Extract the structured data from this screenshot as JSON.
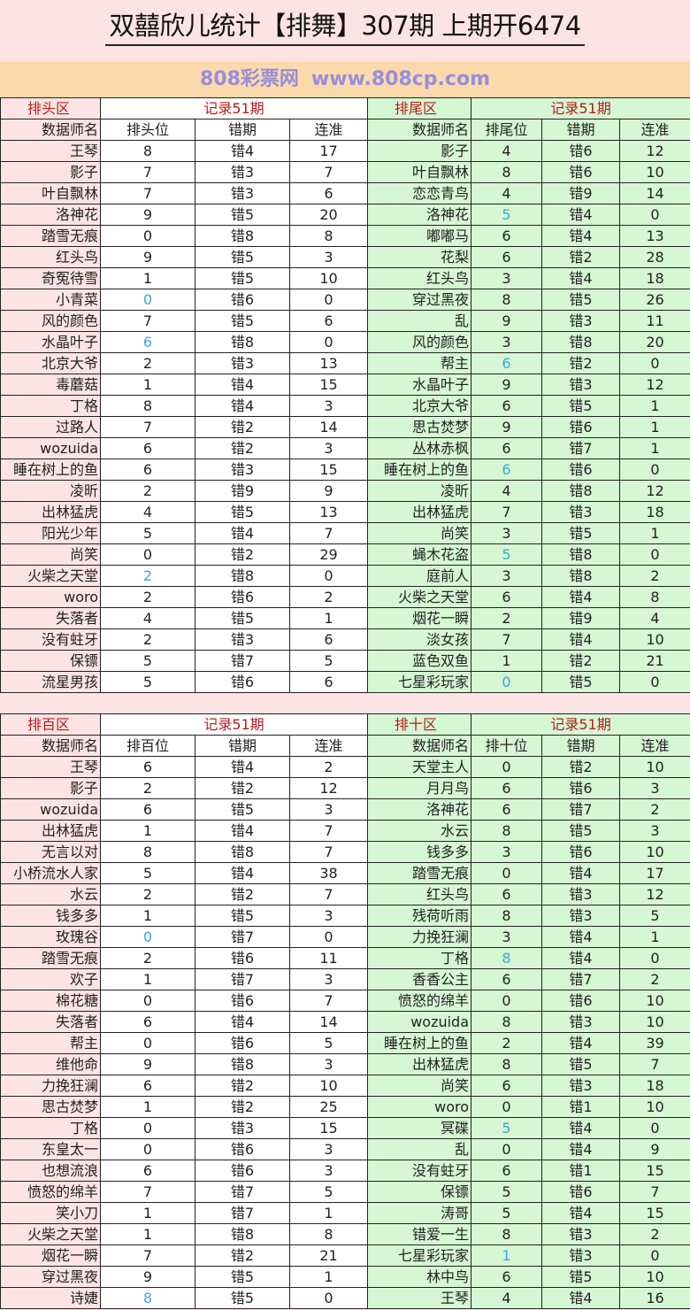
{
  "title": "双囍欣儿统计【排舞】307期  上期开6474",
  "highlight_color": "#3aa8d8",
  "header_color": "#b51d1d",
  "watermark": {
    "line1": "808彩票网",
    "line2": "www.808cp.com"
  },
  "tables": [
    {
      "left": {
        "section": "排头区",
        "record": "记录51期",
        "cols": [
          "数据师名",
          "排头位",
          "错期",
          "连准"
        ],
        "rows": [
          [
            "王琴",
            "8",
            "错4",
            "17"
          ],
          [
            "影子",
            "7",
            "错3",
            "7"
          ],
          [
            "叶自飘林",
            "7",
            "错3",
            "6"
          ],
          [
            "洛神花",
            "9",
            "错5",
            "20"
          ],
          [
            "踏雪无痕",
            "0",
            "错8",
            "8"
          ],
          [
            "红头鸟",
            "9",
            "错5",
            "3"
          ],
          [
            "奇冤待雪",
            "1",
            "错5",
            "10"
          ],
          [
            "小青菜",
            "0",
            "错6",
            "0"
          ],
          [
            "风的颜色",
            "7",
            "错5",
            "6"
          ],
          [
            "水晶叶子",
            "6",
            "错8",
            "0"
          ],
          [
            "北京大爷",
            "2",
            "错3",
            "13"
          ],
          [
            "毒蘑菇",
            "1",
            "错4",
            "15"
          ],
          [
            "丁格",
            "8",
            "错4",
            "3"
          ],
          [
            "过路人",
            "7",
            "错2",
            "14"
          ],
          [
            "wozuida",
            "6",
            "错2",
            "3"
          ],
          [
            "睡在树上的鱼",
            "6",
            "错3",
            "15"
          ],
          [
            "凌昕",
            "2",
            "错9",
            "9"
          ],
          [
            "出林猛虎",
            "4",
            "错5",
            "13"
          ],
          [
            "阳光少年",
            "5",
            "错4",
            "7"
          ],
          [
            "尚笑",
            "0",
            "错2",
            "29"
          ],
          [
            "火柴之天堂",
            "2",
            "错8",
            "0"
          ],
          [
            "woro",
            "2",
            "错6",
            "2"
          ],
          [
            "失落者",
            "4",
            "错5",
            "1"
          ],
          [
            "没有蛀牙",
            "2",
            "错3",
            "6"
          ],
          [
            "保镖",
            "5",
            "错7",
            "5"
          ],
          [
            "流星男孩",
            "5",
            "错6",
            "6"
          ]
        ]
      },
      "right": {
        "section": "排尾区",
        "record": "记录51期",
        "cols": [
          "数据师名",
          "排尾位",
          "错期",
          "连准"
        ],
        "rows": [
          [
            "影子",
            "4",
            "错6",
            "12"
          ],
          [
            "叶自飘林",
            "8",
            "错6",
            "10"
          ],
          [
            "恋恋青鸟",
            "4",
            "错9",
            "14"
          ],
          [
            "洛神花",
            "5",
            "错4",
            "0"
          ],
          [
            "嘟嘟马",
            "6",
            "错4",
            "13"
          ],
          [
            "花梨",
            "6",
            "错2",
            "28"
          ],
          [
            "红头鸟",
            "3",
            "错4",
            "18"
          ],
          [
            "穿过黑夜",
            "8",
            "错5",
            "26"
          ],
          [
            "乱",
            "9",
            "错3",
            "11"
          ],
          [
            "风的颜色",
            "3",
            "错8",
            "20"
          ],
          [
            "帮主",
            "6",
            "错2",
            "0"
          ],
          [
            "水晶叶子",
            "9",
            "错3",
            "12"
          ],
          [
            "北京大爷",
            "6",
            "错5",
            "1"
          ],
          [
            "思古焚梦",
            "9",
            "错6",
            "1"
          ],
          [
            "丛林赤枫",
            "6",
            "错7",
            "1"
          ],
          [
            "睡在树上的鱼",
            "6",
            "错6",
            "0"
          ],
          [
            "凌昕",
            "4",
            "错8",
            "12"
          ],
          [
            "出林猛虎",
            "7",
            "错3",
            "18"
          ],
          [
            "尚笑",
            "3",
            "错5",
            "1"
          ],
          [
            "蝇木花盗",
            "5",
            "错8",
            "0"
          ],
          [
            "庭前人",
            "3",
            "错8",
            "2"
          ],
          [
            "火柴之天堂",
            "6",
            "错4",
            "8"
          ],
          [
            "烟花一瞬",
            "2",
            "错9",
            "4"
          ],
          [
            "淡女孩",
            "7",
            "错4",
            "10"
          ],
          [
            "蓝色双鱼",
            "1",
            "错2",
            "21"
          ],
          [
            "七星彩玩家",
            "0",
            "错5",
            "0"
          ]
        ]
      }
    },
    {
      "left": {
        "section": "排百区",
        "record": "记录51期",
        "cols": [
          "数据师名",
          "排百位",
          "错期",
          "连准"
        ],
        "rows": [
          [
            "王琴",
            "6",
            "错4",
            "2"
          ],
          [
            "影子",
            "2",
            "错2",
            "12"
          ],
          [
            "wozuida",
            "6",
            "错5",
            "3"
          ],
          [
            "出林猛虎",
            "1",
            "错4",
            "7"
          ],
          [
            "无言以对",
            "8",
            "错8",
            "7"
          ],
          [
            "小桥流水人家",
            "5",
            "错4",
            "38"
          ],
          [
            "水云",
            "2",
            "错2",
            "7"
          ],
          [
            "钱多多",
            "1",
            "错5",
            "3"
          ],
          [
            "玫瑰谷",
            "0",
            "错7",
            "0"
          ],
          [
            "踏雪无痕",
            "2",
            "错6",
            "11"
          ],
          [
            "欢子",
            "1",
            "错7",
            "3"
          ],
          [
            "棉花糖",
            "0",
            "错6",
            "7"
          ],
          [
            "失落者",
            "6",
            "错4",
            "14"
          ],
          [
            "帮主",
            "0",
            "错6",
            "5"
          ],
          [
            "维他命",
            "9",
            "错8",
            "3"
          ],
          [
            "力挽狂澜",
            "6",
            "错2",
            "10"
          ],
          [
            "思古焚梦",
            "1",
            "错2",
            "25"
          ],
          [
            "丁格",
            "0",
            "错3",
            "15"
          ],
          [
            "东皇太一",
            "0",
            "错6",
            "3"
          ],
          [
            "也想流浪",
            "6",
            "错6",
            "3"
          ],
          [
            "愤怒的绵羊",
            "7",
            "错7",
            "5"
          ],
          [
            "笑小刀",
            "1",
            "错7",
            "1"
          ],
          [
            "火柴之天堂",
            "1",
            "错8",
            "8"
          ],
          [
            "烟花一瞬",
            "7",
            "错2",
            "21"
          ],
          [
            "穿过黑夜",
            "9",
            "错5",
            "1"
          ],
          [
            "诗婕",
            "8",
            "错5",
            "0"
          ]
        ]
      },
      "right": {
        "section": "排十区",
        "record": "记录51期",
        "cols": [
          "数据师名",
          "排十位",
          "错期",
          "连准"
        ],
        "rows": [
          [
            "天堂主人",
            "0",
            "错2",
            "10"
          ],
          [
            "月月鸟",
            "6",
            "错6",
            "3"
          ],
          [
            "洛神花",
            "6",
            "错7",
            "2"
          ],
          [
            "水云",
            "8",
            "错5",
            "3"
          ],
          [
            "钱多多",
            "3",
            "错6",
            "10"
          ],
          [
            "踏雪无痕",
            "0",
            "错4",
            "17"
          ],
          [
            "红头鸟",
            "6",
            "错3",
            "12"
          ],
          [
            "残荷听雨",
            "8",
            "错3",
            "5"
          ],
          [
            "力挽狂澜",
            "3",
            "错4",
            "1"
          ],
          [
            "丁格",
            "8",
            "错4",
            "0"
          ],
          [
            "香香公主",
            "6",
            "错7",
            "2"
          ],
          [
            "愤怒的绵羊",
            "0",
            "错6",
            "10"
          ],
          [
            "wozuida",
            "8",
            "错3",
            "10"
          ],
          [
            "睡在树上的鱼",
            "2",
            "错4",
            "39"
          ],
          [
            "出林猛虎",
            "8",
            "错5",
            "7"
          ],
          [
            "尚笑",
            "6",
            "错3",
            "18"
          ],
          [
            "woro",
            "0",
            "错1",
            "10"
          ],
          [
            "冥碟",
            "5",
            "错4",
            "0"
          ],
          [
            "乱",
            "0",
            "错4",
            "9"
          ],
          [
            "没有蛀牙",
            "6",
            "错1",
            "15"
          ],
          [
            "保镖",
            "5",
            "错6",
            "7"
          ],
          [
            "涛哥",
            "5",
            "错4",
            "15"
          ],
          [
            "错爱一生",
            "8",
            "错3",
            "2"
          ],
          [
            "七星彩玩家",
            "1",
            "错3",
            "0"
          ],
          [
            "林中鸟",
            "6",
            "错5",
            "10"
          ],
          [
            "王琴",
            "4",
            "错4",
            "16"
          ]
        ]
      }
    }
  ]
}
